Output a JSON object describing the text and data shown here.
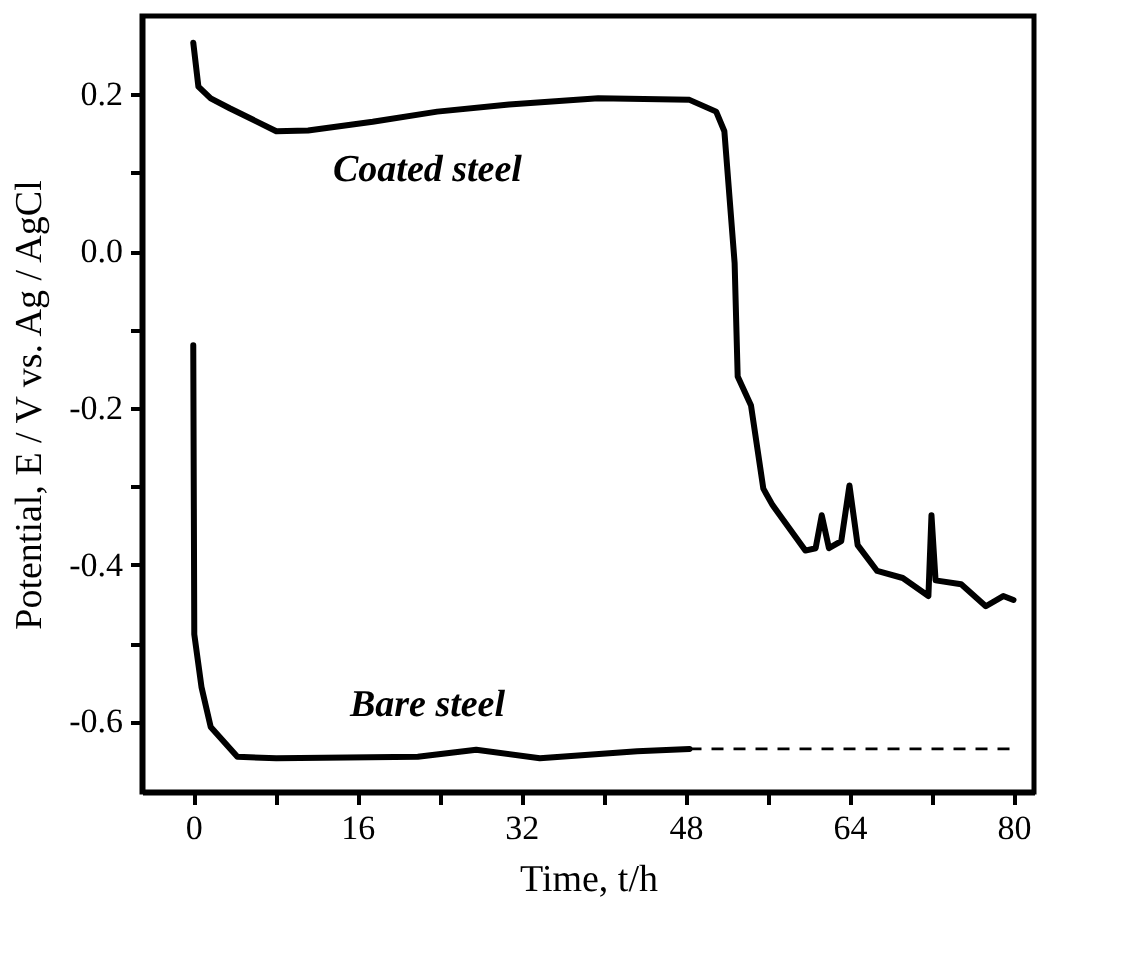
{
  "chart_data": {
    "type": "line",
    "xlabel": "Time, t/h",
    "ylabel": "Potential, E / V vs. Ag / AgCl",
    "xlim": [
      -5,
      82
    ],
    "ylim": [
      -0.69,
      0.3
    ],
    "xticks": [
      0,
      {
        "value": 8,
        "label": null
      },
      16,
      {
        "value": 24,
        "label": null
      },
      32,
      {
        "value": 40,
        "label": null
      },
      48,
      {
        "value": 56,
        "label": null
      },
      64,
      {
        "value": 72,
        "label": null
      },
      80
    ],
    "yticks": [
      -0.6,
      {
        "value": -0.5,
        "label": null
      },
      -0.4,
      {
        "value": -0.3,
        "label": null
      },
      -0.2,
      {
        "value": -0.1,
        "label": null
      },
      {
        "value": 0,
        "label": "0.0"
      },
      {
        "value": 0.1,
        "label": null
      },
      0.2
    ],
    "grid": false,
    "marker": "none",
    "series": [
      {
        "name": "Coated steel",
        "color": "#000000",
        "line_style": "solid",
        "x": [
          0,
          0.5,
          1.7,
          3.6,
          8.1,
          11.2,
          17.5,
          23.8,
          30.8,
          39.5,
          48.4,
          51,
          51.8,
          52.8,
          53.1,
          54.4,
          55.6,
          56.5,
          59.7,
          60.7,
          61.3,
          62,
          63.2,
          64,
          64.8,
          66.7,
          69.2,
          71.7,
          72,
          72.4,
          74.9,
          77.3,
          79,
          80
        ],
        "values": [
          0.266,
          0.21,
          0.195,
          0.182,
          0.153,
          0.154,
          0.165,
          0.178,
          0.187,
          0.195,
          0.193,
          0.178,
          0.153,
          -0.015,
          -0.16,
          -0.197,
          -0.303,
          -0.324,
          -0.382,
          -0.379,
          -0.337,
          -0.379,
          -0.37,
          -0.299,
          -0.375,
          -0.408,
          -0.417,
          -0.44,
          -0.337,
          -0.42,
          -0.425,
          -0.453,
          -0.44,
          -0.445
        ]
      },
      {
        "name": "Bare steel",
        "color": "#000000",
        "line_style": "solid",
        "x": [
          0,
          0.1,
          0.8,
          1.7,
          4.3,
          8.1,
          21.9,
          27.6,
          33.8,
          43.3,
          48.4
        ],
        "values": [
          -0.12,
          -0.489,
          -0.556,
          -0.607,
          -0.645,
          -0.647,
          -0.645,
          -0.636,
          -0.647,
          -0.638,
          -0.635
        ]
      },
      {
        "color": "#000000",
        "line_style": "dashed",
        "x": [
          48.4,
          80
        ],
        "values": [
          -0.635,
          -0.635
        ]
      }
    ]
  }
}
